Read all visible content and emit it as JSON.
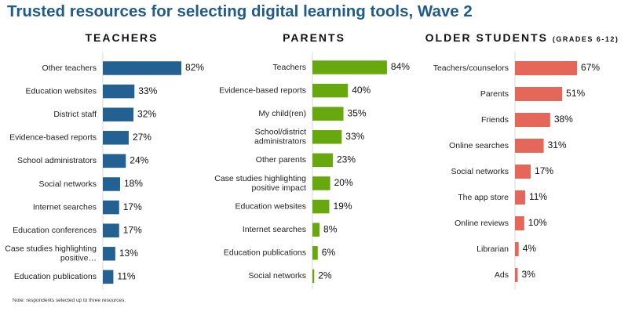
{
  "title": "Trusted resources for selecting digital learning tools, Wave 2",
  "footnote": "Note: respondents selected up to three resources.",
  "colors": {
    "title": "#1f5b8c",
    "teachers": "#236192",
    "parents": "#67a80f",
    "students": "#e4675a"
  },
  "panels": [
    {
      "heading": "TEACHERS",
      "subheading": ""
    },
    {
      "heading": "PARENTS",
      "subheading": ""
    },
    {
      "heading": "OLDER STUDENTS",
      "subheading": "(GRADES 6-12)"
    }
  ],
  "chart_data": [
    {
      "type": "bar",
      "orientation": "horizontal",
      "title": "TEACHERS",
      "color": "#236192",
      "categories": [
        "Other teachers",
        "Education websites",
        "District staff",
        "Evidence-based reports",
        "School administrators",
        "Social networks",
        "Internet searches",
        "Education conferences",
        "Case studies highlighting positive…",
        "Education publications"
      ],
      "values": [
        82,
        33,
        32,
        27,
        24,
        18,
        17,
        17,
        13,
        11
      ],
      "value_labels": [
        "82%",
        "33%",
        "32%",
        "27%",
        "24%",
        "18%",
        "17%",
        "17%",
        "13%",
        "11%"
      ],
      "unit": "%",
      "xlim": [
        0,
        100
      ],
      "grid": false,
      "axis_ticks": false
    },
    {
      "type": "bar",
      "orientation": "horizontal",
      "title": "PARENTS",
      "color": "#67a80f",
      "categories": [
        "Teachers",
        "Evidence-based reports",
        "My child(ren)",
        "School/district administrators",
        "Other parents",
        "Case studies highlighting positive impact",
        "Education websites",
        "Internet searches",
        "Education publications",
        "Social networks"
      ],
      "values": [
        84,
        40,
        35,
        33,
        23,
        20,
        19,
        8,
        6,
        2
      ],
      "value_labels": [
        "84%",
        "40%",
        "35%",
        "33%",
        "23%",
        "20%",
        "19%",
        "8%",
        "6%",
        "2%"
      ],
      "unit": "%",
      "xlim": [
        0,
        100
      ],
      "grid": false,
      "axis_ticks": false
    },
    {
      "type": "bar",
      "orientation": "horizontal",
      "title": "OLDER STUDENTS (GRADES 6-12)",
      "color": "#e4675a",
      "categories": [
        "Teachers/counselors",
        "Parents",
        "Friends",
        "Online searches",
        "Social networks",
        "The app store",
        "Online reviews",
        "Librarian",
        "Ads"
      ],
      "values": [
        67,
        51,
        38,
        31,
        17,
        11,
        10,
        4,
        3
      ],
      "value_labels": [
        "67%",
        "51%",
        "38%",
        "31%",
        "17%",
        "11%",
        "10%",
        "4%",
        "3%"
      ],
      "unit": "%",
      "xlim": [
        0,
        100
      ],
      "grid": false,
      "axis_ticks": false
    }
  ]
}
